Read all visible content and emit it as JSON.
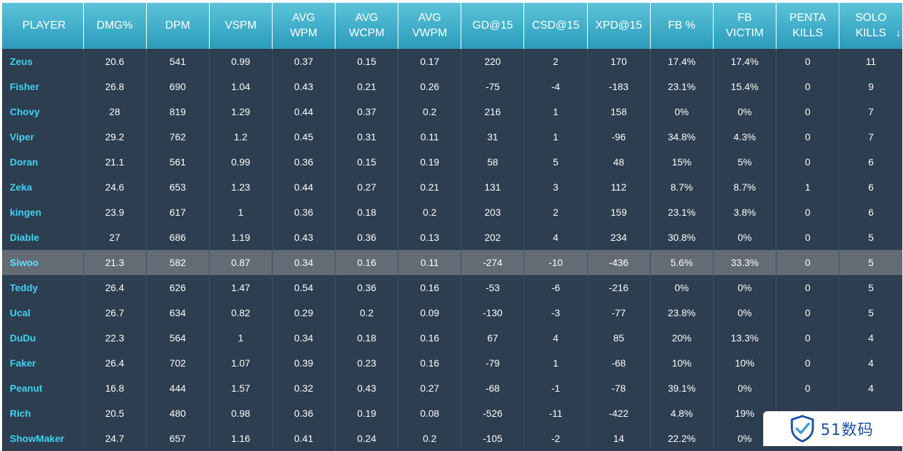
{
  "table": {
    "columns": [
      {
        "line1": "PLAYER",
        "line2": ""
      },
      {
        "line1": "DMG%",
        "line2": ""
      },
      {
        "line1": "DPM",
        "line2": ""
      },
      {
        "line1": "VSPM",
        "line2": ""
      },
      {
        "line1": "AVG",
        "line2": "WPM"
      },
      {
        "line1": "AVG",
        "line2": "WCPM"
      },
      {
        "line1": "AVG",
        "line2": "VWPM"
      },
      {
        "line1": "GD@15",
        "line2": ""
      },
      {
        "line1": "CSD@15",
        "line2": ""
      },
      {
        "line1": "XPD@15",
        "line2": ""
      },
      {
        "line1": "FB %",
        "line2": ""
      },
      {
        "line1": "FB",
        "line2": "VICTIM"
      },
      {
        "line1": "PENTA",
        "line2": "KILLS"
      },
      {
        "line1": "SOLO",
        "line2": "KILLS"
      }
    ],
    "sort_indicator": "↓",
    "highlighted_row": 8,
    "rows": [
      [
        "Zeus",
        "20.6",
        "541",
        "0.99",
        "0.37",
        "0.15",
        "0.17",
        "220",
        "2",
        "170",
        "17.4%",
        "17.4%",
        "0",
        "11"
      ],
      [
        "Fisher",
        "26.8",
        "690",
        "1.04",
        "0.43",
        "0.21",
        "0.26",
        "-75",
        "-4",
        "-183",
        "23.1%",
        "15.4%",
        "0",
        "9"
      ],
      [
        "Chovy",
        "28",
        "819",
        "1.29",
        "0.44",
        "0.37",
        "0.2",
        "216",
        "1",
        "158",
        "0%",
        "0%",
        "0",
        "7"
      ],
      [
        "Viper",
        "29.2",
        "762",
        "1.2",
        "0.45",
        "0.31",
        "0.11",
        "31",
        "1",
        "-96",
        "34.8%",
        "4.3%",
        "0",
        "7"
      ],
      [
        "Doran",
        "21.1",
        "561",
        "0.99",
        "0.36",
        "0.15",
        "0.19",
        "58",
        "5",
        "48",
        "15%",
        "5%",
        "0",
        "6"
      ],
      [
        "Zeka",
        "24.6",
        "653",
        "1.23",
        "0.44",
        "0.27",
        "0.21",
        "131",
        "3",
        "112",
        "8.7%",
        "8.7%",
        "1",
        "6"
      ],
      [
        "kingen",
        "23.9",
        "617",
        "1",
        "0.36",
        "0.18",
        "0.2",
        "203",
        "2",
        "159",
        "23.1%",
        "3.8%",
        "0",
        "6"
      ],
      [
        "Diable",
        "27",
        "686",
        "1.19",
        "0.43",
        "0.36",
        "0.13",
        "202",
        "4",
        "234",
        "30.8%",
        "0%",
        "0",
        "5"
      ],
      [
        "Siwoo",
        "21.3",
        "582",
        "0.87",
        "0.34",
        "0.16",
        "0.11",
        "-274",
        "-10",
        "-436",
        "5.6%",
        "33.3%",
        "0",
        "5"
      ],
      [
        "Teddy",
        "26.4",
        "626",
        "1.47",
        "0.54",
        "0.36",
        "0.16",
        "-53",
        "-6",
        "-216",
        "0%",
        "0%",
        "0",
        "5"
      ],
      [
        "Ucal",
        "26.7",
        "634",
        "0.82",
        "0.29",
        "0.2",
        "0.09",
        "-130",
        "-3",
        "-77",
        "23.8%",
        "0%",
        "0",
        "5"
      ],
      [
        "DuDu",
        "22.3",
        "564",
        "1",
        "0.34",
        "0.18",
        "0.16",
        "67",
        "4",
        "85",
        "20%",
        "13.3%",
        "0",
        "4"
      ],
      [
        "Faker",
        "26.4",
        "702",
        "1.07",
        "0.39",
        "0.23",
        "0.16",
        "-79",
        "1",
        "-68",
        "10%",
        "10%",
        "0",
        "4"
      ],
      [
        "Peanut",
        "16.8",
        "444",
        "1.57",
        "0.32",
        "0.43",
        "0.27",
        "-68",
        "-1",
        "-78",
        "39.1%",
        "0%",
        "0",
        "4"
      ],
      [
        "Rich",
        "20.5",
        "480",
        "0.98",
        "0.36",
        "0.19",
        "0.08",
        "-526",
        "-11",
        "-422",
        "4.8%",
        "19%",
        "",
        ""
      ],
      [
        "ShowMaker",
        "24.7",
        "657",
        "1.16",
        "0.41",
        "0.24",
        "0.2",
        "-105",
        "-2",
        "14",
        "22.2%",
        "0%",
        "",
        ""
      ]
    ]
  },
  "watermark": {
    "text": "51数码",
    "logo_icon": "shield-check-icon",
    "color": "#1b4fa8"
  },
  "colors": {
    "header_top": "#5bc3d8",
    "header_bottom": "#2b9bbb",
    "row_bg": "#2c3e50",
    "highlight_bg": "#636b74",
    "player_name": "#3fd3ef"
  }
}
